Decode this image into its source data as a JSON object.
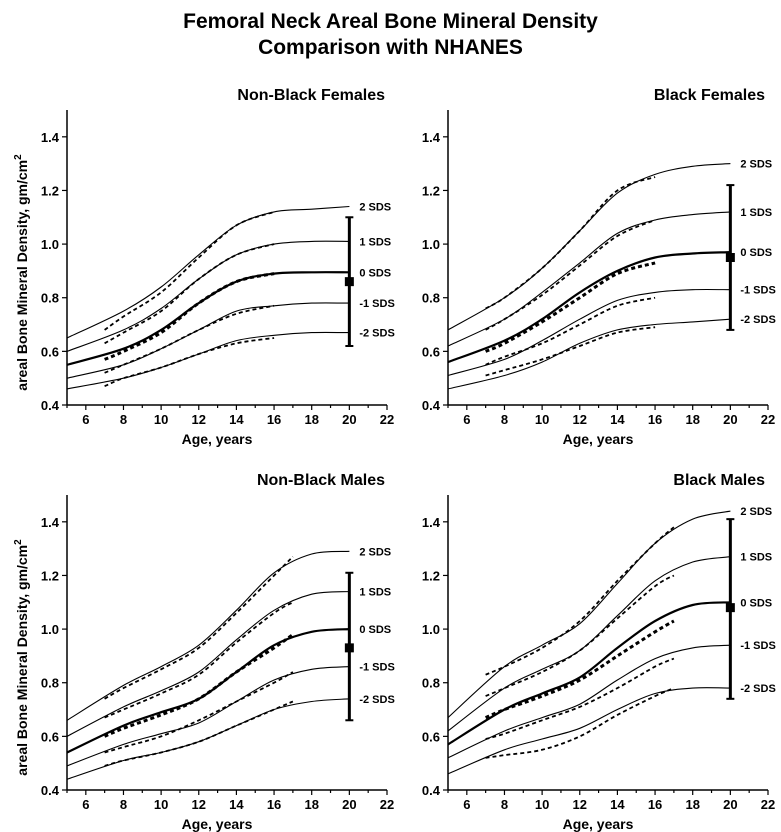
{
  "title_line1": "Femoral Neck Areal Bone Mineral Density",
  "title_line2": "Comparison with NHANES",
  "chart_data": [
    {
      "type": "line",
      "title": "Non-Black Females",
      "xlabel": "Age, years",
      "ylabel": "areal Bone Mineral Density, gm/cm",
      "ylabel_superscript": "2",
      "xlim": [
        5,
        22
      ],
      "ylim": [
        0.4,
        1.5
      ],
      "xticks": [
        6,
        8,
        10,
        12,
        14,
        16,
        18,
        20,
        22
      ],
      "yticks": [
        0.4,
        0.6,
        0.8,
        1.0,
        1.2,
        1.4
      ],
      "sds_levels": [
        "2 SDS",
        "1 SDS",
        "0 SDS",
        "-1 SDS",
        "-2 SDS"
      ],
      "reference_curves": [
        {
          "sds": 2,
          "x": [
            5,
            8,
            10,
            12,
            14,
            16,
            18,
            20
          ],
          "y": [
            0.65,
            0.75,
            0.84,
            0.96,
            1.07,
            1.12,
            1.13,
            1.14
          ]
        },
        {
          "sds": 1,
          "x": [
            5,
            8,
            10,
            12,
            14,
            16,
            18,
            20
          ],
          "y": [
            0.6,
            0.68,
            0.76,
            0.87,
            0.96,
            1.0,
            1.01,
            1.01
          ]
        },
        {
          "sds": 0,
          "x": [
            5,
            8,
            10,
            12,
            14,
            16,
            18,
            20
          ],
          "y": [
            0.55,
            0.61,
            0.68,
            0.78,
            0.86,
            0.89,
            0.895,
            0.895
          ]
        },
        {
          "sds": -1,
          "x": [
            5,
            8,
            10,
            12,
            14,
            16,
            18,
            20
          ],
          "y": [
            0.5,
            0.55,
            0.61,
            0.68,
            0.75,
            0.77,
            0.78,
            0.78
          ]
        },
        {
          "sds": -2,
          "x": [
            5,
            8,
            10,
            12,
            14,
            16,
            18,
            20
          ],
          "y": [
            0.46,
            0.5,
            0.54,
            0.59,
            0.64,
            0.66,
            0.67,
            0.67
          ]
        }
      ],
      "study_curves": [
        {
          "sds": 2,
          "x": [
            7,
            8,
            10,
            12,
            14,
            16
          ],
          "y": [
            0.68,
            0.73,
            0.82,
            0.95,
            1.07,
            1.12
          ]
        },
        {
          "sds": 1,
          "x": [
            7,
            8,
            10,
            12,
            14,
            16
          ],
          "y": [
            0.63,
            0.67,
            0.75,
            0.87,
            0.96,
            1.0
          ]
        },
        {
          "sds": 0,
          "x": [
            7,
            8,
            10,
            12,
            14,
            16
          ],
          "y": [
            0.57,
            0.6,
            0.67,
            0.78,
            0.86,
            0.89
          ]
        },
        {
          "sds": -1,
          "x": [
            7,
            8,
            10,
            12,
            14,
            16
          ],
          "y": [
            0.52,
            0.55,
            0.61,
            0.68,
            0.74,
            0.77
          ]
        },
        {
          "sds": -2,
          "x": [
            7,
            8,
            10,
            12,
            14,
            16
          ],
          "y": [
            0.47,
            0.5,
            0.54,
            0.59,
            0.63,
            0.65
          ]
        }
      ],
      "nhanes": {
        "x": 20,
        "mean": 0.86,
        "low": 0.62,
        "high": 1.1
      }
    },
    {
      "type": "line",
      "title": "Black Females",
      "xlabel": "Age, years",
      "ylabel": "",
      "xlim": [
        5,
        22
      ],
      "ylim": [
        0.4,
        1.5
      ],
      "xticks": [
        6,
        8,
        10,
        12,
        14,
        16,
        18,
        20,
        22
      ],
      "yticks": [
        0.4,
        0.6,
        0.8,
        1.0,
        1.2,
        1.4
      ],
      "sds_levels": [
        "2 SDS",
        "1 SDS",
        "0 SDS",
        "-1 SDS",
        "-2 SDS"
      ],
      "reference_curves": [
        {
          "sds": 2,
          "x": [
            5,
            8,
            10,
            12,
            14,
            16,
            18,
            20
          ],
          "y": [
            0.68,
            0.8,
            0.91,
            1.05,
            1.19,
            1.26,
            1.29,
            1.3
          ]
        },
        {
          "sds": 1,
          "x": [
            5,
            8,
            10,
            12,
            14,
            16,
            18,
            20
          ],
          "y": [
            0.62,
            0.72,
            0.82,
            0.93,
            1.04,
            1.09,
            1.11,
            1.12
          ]
        },
        {
          "sds": 0,
          "x": [
            5,
            8,
            10,
            12,
            14,
            16,
            18,
            20
          ],
          "y": [
            0.56,
            0.64,
            0.72,
            0.82,
            0.9,
            0.95,
            0.965,
            0.97
          ]
        },
        {
          "sds": -1,
          "x": [
            5,
            8,
            10,
            12,
            14,
            16,
            18,
            20
          ],
          "y": [
            0.51,
            0.57,
            0.64,
            0.72,
            0.79,
            0.82,
            0.83,
            0.83
          ]
        },
        {
          "sds": -2,
          "x": [
            5,
            8,
            10,
            12,
            14,
            16,
            18,
            20
          ],
          "y": [
            0.46,
            0.51,
            0.56,
            0.63,
            0.68,
            0.7,
            0.71,
            0.72
          ]
        }
      ],
      "study_curves": [
        {
          "sds": 2,
          "x": [
            7,
            8,
            10,
            12,
            14,
            16
          ],
          "y": [
            0.76,
            0.8,
            0.91,
            1.05,
            1.2,
            1.25
          ]
        },
        {
          "sds": 1,
          "x": [
            7,
            8,
            10,
            12,
            14,
            16
          ],
          "y": [
            0.68,
            0.72,
            0.81,
            0.92,
            1.03,
            1.09
          ]
        },
        {
          "sds": 0,
          "x": [
            7,
            8,
            10,
            12,
            14,
            16
          ],
          "y": [
            0.6,
            0.63,
            0.71,
            0.8,
            0.89,
            0.93
          ]
        },
        {
          "sds": -1,
          "x": [
            7,
            8,
            10,
            12,
            14,
            16
          ],
          "y": [
            0.55,
            0.58,
            0.63,
            0.7,
            0.77,
            0.8
          ]
        },
        {
          "sds": -2,
          "x": [
            7,
            8,
            10,
            12,
            14,
            16
          ],
          "y": [
            0.51,
            0.53,
            0.57,
            0.62,
            0.67,
            0.69
          ]
        }
      ],
      "nhanes": {
        "x": 20,
        "mean": 0.95,
        "low": 0.68,
        "high": 1.22
      }
    },
    {
      "type": "line",
      "title": "Non-Black Males",
      "xlabel": "Age, years",
      "ylabel": "areal Bone Mineral Density, gm/cm",
      "ylabel_superscript": "2",
      "xlim": [
        5,
        22
      ],
      "ylim": [
        0.4,
        1.5
      ],
      "xticks": [
        6,
        8,
        10,
        12,
        14,
        16,
        18,
        20,
        22
      ],
      "yticks": [
        0.4,
        0.6,
        0.8,
        1.0,
        1.2,
        1.4
      ],
      "sds_levels": [
        "2 SDS",
        "1 SDS",
        "0 SDS",
        "-1 SDS",
        "-2 SDS"
      ],
      "reference_curves": [
        {
          "sds": 2,
          "x": [
            5,
            8,
            10,
            12,
            14,
            16,
            18,
            20
          ],
          "y": [
            0.66,
            0.79,
            0.86,
            0.94,
            1.07,
            1.21,
            1.28,
            1.29
          ]
        },
        {
          "sds": 1,
          "x": [
            5,
            8,
            10,
            12,
            14,
            16,
            18,
            20
          ],
          "y": [
            0.6,
            0.71,
            0.77,
            0.84,
            0.96,
            1.07,
            1.13,
            1.14
          ]
        },
        {
          "sds": 0,
          "x": [
            5,
            8,
            10,
            12,
            14,
            16,
            18,
            20
          ],
          "y": [
            0.54,
            0.64,
            0.69,
            0.74,
            0.84,
            0.94,
            0.99,
            1.0
          ]
        },
        {
          "sds": -1,
          "x": [
            5,
            8,
            10,
            12,
            14,
            16,
            18,
            20
          ],
          "y": [
            0.49,
            0.57,
            0.61,
            0.65,
            0.73,
            0.81,
            0.85,
            0.86
          ]
        },
        {
          "sds": -2,
          "x": [
            5,
            8,
            10,
            12,
            14,
            16,
            18,
            20
          ],
          "y": [
            0.44,
            0.51,
            0.54,
            0.58,
            0.64,
            0.7,
            0.73,
            0.74
          ]
        }
      ],
      "study_curves": [
        {
          "sds": 2,
          "x": [
            7,
            8,
            10,
            12,
            14,
            16,
            17
          ],
          "y": [
            0.74,
            0.78,
            0.85,
            0.93,
            1.06,
            1.2,
            1.27
          ]
        },
        {
          "sds": 1,
          "x": [
            7,
            8,
            10,
            12,
            14,
            16,
            17
          ],
          "y": [
            0.67,
            0.7,
            0.76,
            0.83,
            0.95,
            1.06,
            1.1
          ]
        },
        {
          "sds": 0,
          "x": [
            7,
            8,
            10,
            12,
            14,
            16,
            17
          ],
          "y": [
            0.6,
            0.63,
            0.68,
            0.74,
            0.84,
            0.93,
            0.98
          ]
        },
        {
          "sds": -1,
          "x": [
            7,
            8,
            10,
            12,
            14,
            16,
            17
          ],
          "y": [
            0.54,
            0.56,
            0.6,
            0.66,
            0.73,
            0.8,
            0.84
          ]
        },
        {
          "sds": -2,
          "x": [
            7,
            8,
            10,
            12,
            14,
            16,
            17
          ],
          "y": [
            0.49,
            0.51,
            0.54,
            0.58,
            0.64,
            0.7,
            0.73
          ]
        }
      ],
      "nhanes": {
        "x": 20,
        "mean": 0.93,
        "low": 0.66,
        "high": 1.21
      }
    },
    {
      "type": "line",
      "title": "Black Males",
      "xlabel": "Age, years",
      "ylabel": "",
      "xlim": [
        5,
        22
      ],
      "ylim": [
        0.4,
        1.5
      ],
      "xticks": [
        6,
        8,
        10,
        12,
        14,
        16,
        18,
        20,
        22
      ],
      "yticks": [
        0.4,
        0.6,
        0.8,
        1.0,
        1.2,
        1.4
      ],
      "sds_levels": [
        "2 SDS",
        "1 SDS",
        "0 SDS",
        "-1 SDS",
        "-2 SDS"
      ],
      "reference_curves": [
        {
          "sds": 2,
          "x": [
            5,
            8,
            10,
            12,
            14,
            16,
            18,
            20
          ],
          "y": [
            0.67,
            0.86,
            0.94,
            1.02,
            1.17,
            1.32,
            1.41,
            1.44
          ]
        },
        {
          "sds": 1,
          "x": [
            5,
            8,
            10,
            12,
            14,
            16,
            18,
            20
          ],
          "y": [
            0.62,
            0.78,
            0.85,
            0.92,
            1.05,
            1.18,
            1.25,
            1.27
          ]
        },
        {
          "sds": 0,
          "x": [
            5,
            8,
            10,
            12,
            14,
            16,
            18,
            20
          ],
          "y": [
            0.57,
            0.7,
            0.76,
            0.82,
            0.93,
            1.03,
            1.09,
            1.1
          ]
        },
        {
          "sds": -1,
          "x": [
            5,
            8,
            10,
            12,
            14,
            16,
            18,
            20
          ],
          "y": [
            0.52,
            0.62,
            0.67,
            0.72,
            0.81,
            0.89,
            0.93,
            0.94
          ]
        },
        {
          "sds": -2,
          "x": [
            5,
            8,
            10,
            12,
            14,
            16,
            18,
            20
          ],
          "y": [
            0.46,
            0.55,
            0.59,
            0.63,
            0.7,
            0.76,
            0.78,
            0.78
          ]
        }
      ],
      "study_curves": [
        {
          "sds": 2,
          "x": [
            7,
            8,
            10,
            12,
            14,
            16,
            17
          ],
          "y": [
            0.83,
            0.86,
            0.93,
            1.03,
            1.18,
            1.32,
            1.38
          ]
        },
        {
          "sds": 1,
          "x": [
            7,
            8,
            10,
            12,
            14,
            16,
            17
          ],
          "y": [
            0.75,
            0.78,
            0.84,
            0.92,
            1.04,
            1.16,
            1.2
          ]
        },
        {
          "sds": 0,
          "x": [
            7,
            8,
            10,
            12,
            14,
            16,
            17
          ],
          "y": [
            0.67,
            0.7,
            0.75,
            0.81,
            0.9,
            0.99,
            1.03
          ]
        },
        {
          "sds": -1,
          "x": [
            7,
            8,
            10,
            12,
            14,
            16,
            17
          ],
          "y": [
            0.59,
            0.61,
            0.66,
            0.71,
            0.78,
            0.86,
            0.89
          ]
        },
        {
          "sds": -2,
          "x": [
            7,
            8,
            10,
            12,
            14,
            16,
            17
          ],
          "y": [
            0.52,
            0.53,
            0.55,
            0.6,
            0.68,
            0.75,
            0.78
          ]
        }
      ],
      "nhanes": {
        "x": 20,
        "mean": 1.08,
        "low": 0.74,
        "high": 1.41
      }
    }
  ]
}
